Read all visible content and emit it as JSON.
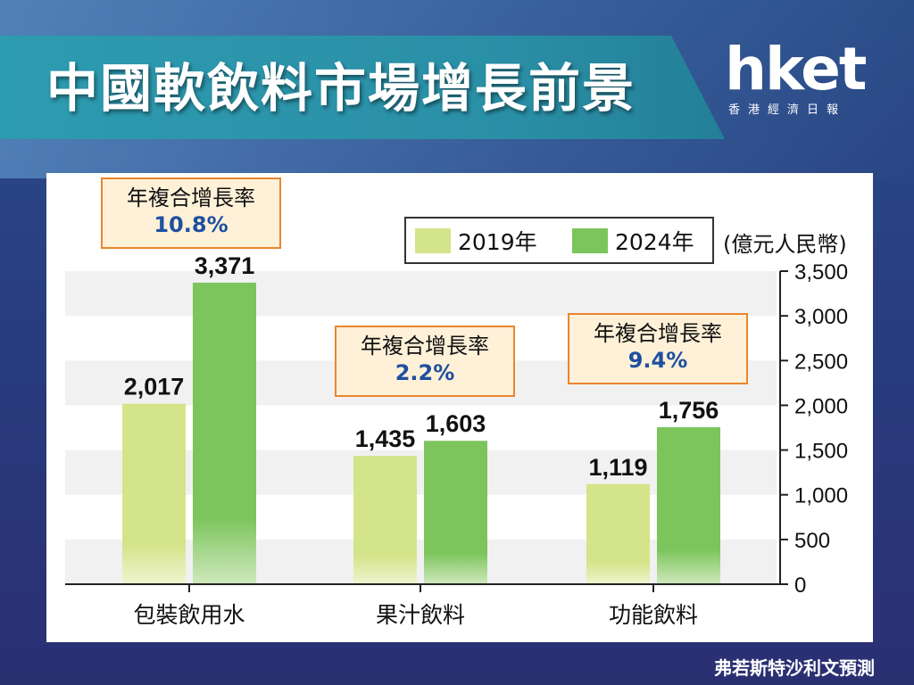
{
  "title": "中國軟飲料市場增長前景",
  "logo": {
    "main": "hket",
    "sub": "香港經濟日報"
  },
  "source": "弗若斯特沙利文預測",
  "unit": "(億元人民幣)",
  "colors": {
    "series_2019": "#d4e48a",
    "series_2024": "#7cc45c",
    "cagr_border": "#e9862d",
    "cagr_value": "#1f4fa0"
  },
  "cagr": [
    {
      "label": "年複合增長率",
      "value": "10.8%"
    },
    {
      "label": "年複合增長率",
      "value": "2.2%"
    },
    {
      "label": "年複合增長率",
      "value": "9.4%"
    }
  ],
  "chart_data": {
    "type": "bar",
    "categories": [
      "包裝飲用水",
      "果汁飲料",
      "功能飲料"
    ],
    "series": [
      {
        "name": "2019年",
        "values": [
          2017,
          1435,
          1119
        ],
        "labels": [
          "2,017",
          "1,435",
          "1,119"
        ]
      },
      {
        "name": "2024年",
        "values": [
          3371,
          1603,
          1756
        ],
        "labels": [
          "3,371",
          "1,603",
          "1,756"
        ]
      }
    ],
    "ylim": [
      0,
      3500
    ],
    "yticks": [
      0,
      500,
      1000,
      1500,
      2000,
      2500,
      3000,
      3500
    ],
    "ytick_labels": [
      "0",
      "500",
      "1,000",
      "1,500",
      "2,000",
      "2,500",
      "3,000",
      "3,500"
    ],
    "legend": "top-right",
    "grid": "banded"
  }
}
